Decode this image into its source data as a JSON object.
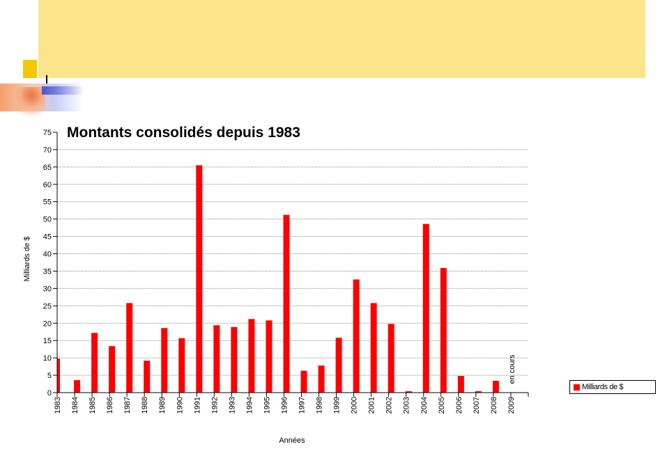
{
  "colors": {
    "banner": "#fbe48a",
    "accent_yellow": "#f7c600",
    "bar": "#ff0000"
  },
  "chart_data": {
    "type": "bar",
    "title": "Montants consolidés depuis 1983",
    "xlabel": "Années",
    "ylabel": "Milliards de $",
    "ylim": [
      0,
      75
    ],
    "yticks": [
      0,
      5,
      10,
      15,
      20,
      25,
      30,
      35,
      40,
      45,
      50,
      55,
      60,
      65,
      70,
      75
    ],
    "grid": true,
    "legend_position": "right",
    "categories": [
      "1983",
      "1984",
      "1985",
      "1986",
      "1987",
      "1988",
      "1989",
      "1990",
      "1991",
      "1992",
      "1993",
      "1994",
      "1995",
      "1996",
      "1997",
      "1998",
      "1999",
      "2000",
      "2001",
      "2002",
      "2003",
      "2004",
      "2005",
      "2006",
      "2007",
      "2008",
      "2009"
    ],
    "series": [
      {
        "name": "Milliards de $",
        "values": [
          9.8,
          3.6,
          17.2,
          13.4,
          25.8,
          9.2,
          18.6,
          15.7,
          65.5,
          19.4,
          18.9,
          21.2,
          20.8,
          51.2,
          6.3,
          7.8,
          15.8,
          32.6,
          25.8,
          19.8,
          0.4,
          48.6,
          35.9,
          4.8,
          0.4,
          3.4,
          null
        ]
      }
    ],
    "annotations": [
      {
        "category": "2009",
        "text": "en cours"
      }
    ]
  }
}
